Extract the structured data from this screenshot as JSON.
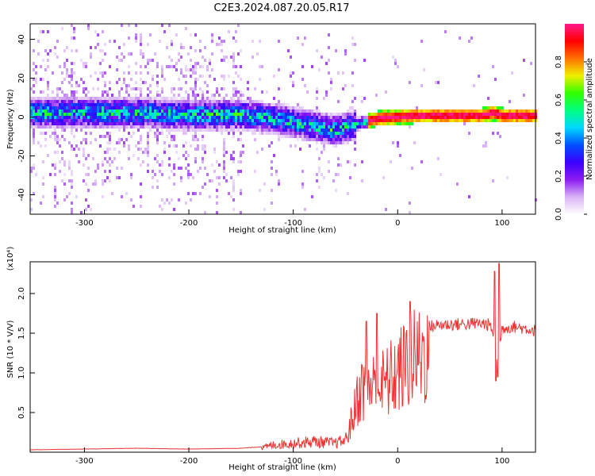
{
  "figure": {
    "title": "C2E3.2024.087.20.05.R17"
  },
  "chart_data": [
    {
      "type": "heatmap",
      "xlabel": "Height of straight line (km)",
      "ylabel": "Frequency (Hz)",
      "xlim": [
        -352,
        132
      ],
      "ylim": [
        -50,
        48
      ],
      "xticks": [
        -300,
        -200,
        -100,
        0,
        100
      ],
      "yticks": [
        -40,
        -20,
        0,
        20,
        40
      ],
      "colorbar": {
        "label": "Normalized spectral amplitude",
        "range": [
          0.0,
          1.0
        ],
        "ticks": [
          0.0,
          0.2,
          0.4,
          0.6,
          0.8
        ],
        "colormap": [
          "#ffffff",
          "#d9b3f5",
          "#8b1cf0",
          "#3a00ff",
          "#0050ff",
          "#00d8ff",
          "#00ff80",
          "#30ff00",
          "#f0f000",
          "#ff7000",
          "#ff0000",
          "#ff1a8c"
        ]
      },
      "ridge": {
        "x": [
          -352,
          -300,
          -250,
          -200,
          -150,
          -120,
          -100,
          -80,
          -60,
          -40,
          -20,
          0,
          20,
          40,
          60,
          80,
          90,
          100,
          132
        ],
        "y": [
          3,
          3,
          3,
          2,
          2,
          0,
          -2,
          -4,
          -6,
          -3,
          0,
          1,
          1.5,
          1.5,
          1.5,
          1.5,
          3,
          1.5,
          1.5
        ]
      },
      "grid": false
    },
    {
      "type": "line",
      "xlabel": "Height of straight line (km)",
      "ylabel": "SNR (10 * V/V)",
      "ylabel_exponent": "(x10⁴)",
      "xlim": [
        -352,
        132
      ],
      "ylim": [
        0,
        2.4
      ],
      "xticks": [
        -300,
        -200,
        -100,
        0,
        100
      ],
      "yticks": [
        0.5,
        1.0,
        1.5,
        2.0
      ],
      "series": [
        {
          "color": "#ee3333",
          "envelope_x": [
            -352,
            -300,
            -250,
            -200,
            -150,
            -130,
            -120,
            -100,
            -80,
            -60,
            -50,
            -42,
            -38,
            -30,
            -20,
            -10,
            0,
            10,
            20,
            30,
            40,
            60,
            80,
            88,
            92,
            95,
            97,
            100,
            110,
            120,
            132
          ],
          "envelope_y": [
            0.03,
            0.04,
            0.05,
            0.04,
            0.05,
            0.07,
            0.12,
            0.15,
            0.18,
            0.15,
            0.2,
            0.6,
            0.9,
            1.1,
            1.0,
            1.1,
            1.25,
            1.4,
            1.5,
            1.6,
            1.62,
            1.63,
            1.64,
            1.62,
            1.5,
            1.2,
            1.3,
            1.58,
            1.6,
            1.58,
            1.55
          ]
        }
      ],
      "spikes": [
        {
          "x": 93,
          "y": 2.28
        },
        {
          "x": 94,
          "y": 0.9
        },
        {
          "x": 97,
          "y": 2.38
        },
        {
          "x": 96,
          "y": 0.95
        },
        {
          "x": 12,
          "y": 1.9
        },
        {
          "x": -20,
          "y": 1.75
        },
        {
          "x": -30,
          "y": 1.65
        }
      ],
      "grid": false
    }
  ]
}
